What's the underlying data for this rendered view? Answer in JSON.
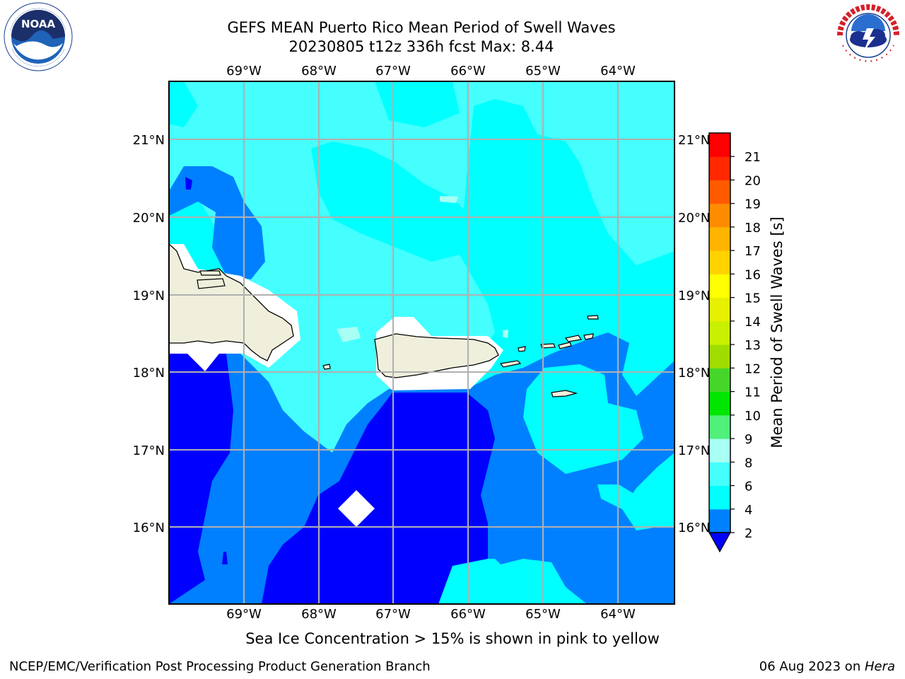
{
  "header": {
    "title_line1": "GEFS MEAN Puerto Rico Mean Period of Swell Waves",
    "title_line2": "20230805 t12z 336h fcst   Max: 8.44"
  },
  "logos": {
    "left": {
      "icon": "noaa-logo",
      "text": "NOAA",
      "ring_text": "NATIONAL OCEANIC AND ATMOSPHERIC ADMINISTRATION · U.S. DEPARTMENT OF COMMERCE"
    },
    "right": {
      "icon": "nws-logo",
      "ring_text": "NATIONAL WEATHER SERVICE"
    }
  },
  "map": {
    "lon_labels": [
      "69°W",
      "68°W",
      "67°W",
      "66°W",
      "65°W",
      "64°W"
    ],
    "lat_labels": [
      "21°N",
      "20°N",
      "19°N",
      "18°N",
      "17°N",
      "16°N"
    ],
    "colors": {
      "band_0_2": "#0000ff",
      "band_2_4": "#0080ff",
      "band_4_6": "#00ffff",
      "band_6_8": "#45ffff",
      "band_8_9": "#a8fff4",
      "land": "#efefdc",
      "masked": "#ffffff"
    }
  },
  "colorbar": {
    "label": "Mean Period of Swell Waves [s]",
    "ticks": [
      "2",
      "4",
      "6",
      "8",
      "9",
      "10",
      "11",
      "12",
      "13",
      "14",
      "15",
      "16",
      "17",
      "18",
      "19",
      "20",
      "21"
    ],
    "bands": [
      "#0080ff",
      "#00ffff",
      "#45ffff",
      "#a8fff4",
      "#50f07a",
      "#00e600",
      "#46d62a",
      "#a0dc00",
      "#c8f000",
      "#e6f000",
      "#ffff00",
      "#ffd200",
      "#ffb400",
      "#ff8c00",
      "#ff5a00",
      "#ff2800",
      "#ff0000"
    ],
    "under_color": "#0000ff"
  },
  "caption": "Sea Ice Concentration > 15% is shown in pink to yellow",
  "footer": {
    "left": "NCEP/EMC/Verification Post Processing Product Generation Branch",
    "right_prefix": "06 Aug 2023 on ",
    "right_host": "Hera"
  }
}
